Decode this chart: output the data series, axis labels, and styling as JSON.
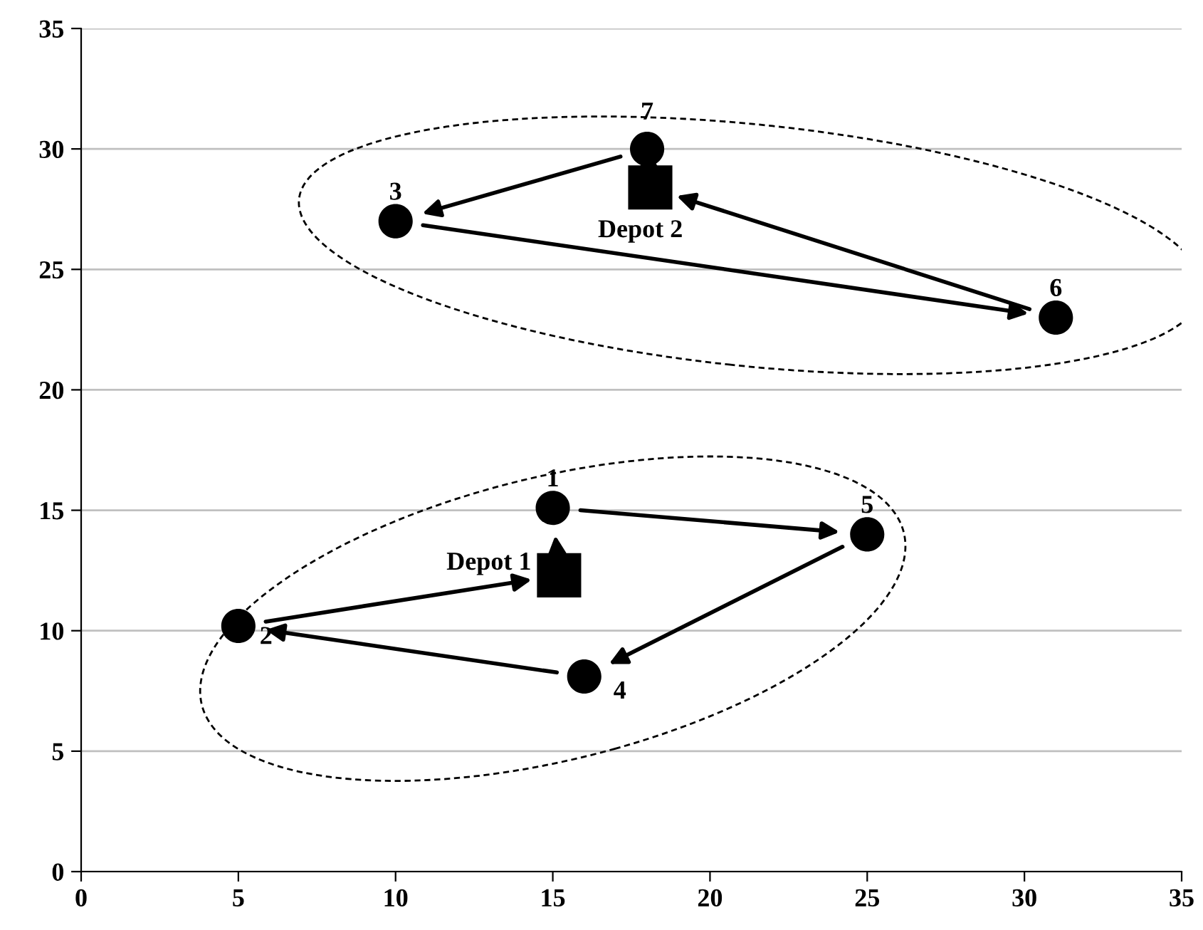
{
  "chart_data": {
    "type": "scatter",
    "xlim": [
      0,
      35
    ],
    "ylim": [
      0,
      35
    ],
    "xticks": [
      0,
      5,
      10,
      15,
      20,
      25,
      30,
      35
    ],
    "yticks": [
      0,
      5,
      10,
      15,
      20,
      25,
      30,
      35
    ],
    "grid": "y",
    "series": [
      {
        "marker": "square",
        "color": "#000000",
        "x": [
          15.2,
          18.1
        ],
        "values": [
          12.3,
          28.4
        ]
      },
      {
        "marker": "circle",
        "color": "#000000",
        "x": [
          15,
          25,
          16,
          5,
          18,
          10,
          31
        ],
        "values": [
          15.1,
          14,
          8.1,
          10.2,
          30,
          27,
          23
        ]
      }
    ],
    "annotations": [
      {
        "text": "1",
        "x": 15,
        "y": 15.1
      },
      {
        "text": "5",
        "x": 25,
        "y": 14
      },
      {
        "text": "4",
        "x": 16,
        "y": 8.1
      },
      {
        "text": "2",
        "x": 5,
        "y": 10.2
      },
      {
        "text": "7",
        "x": 18,
        "y": 30
      },
      {
        "text": "3",
        "x": 10,
        "y": 27
      },
      {
        "text": "6",
        "x": 31,
        "y": 23
      },
      {
        "text": "Depot 1",
        "x": 15.2,
        "y": 12.3
      },
      {
        "text": "Depot 2",
        "x": 18.1,
        "y": 28.4
      }
    ]
  }
}
